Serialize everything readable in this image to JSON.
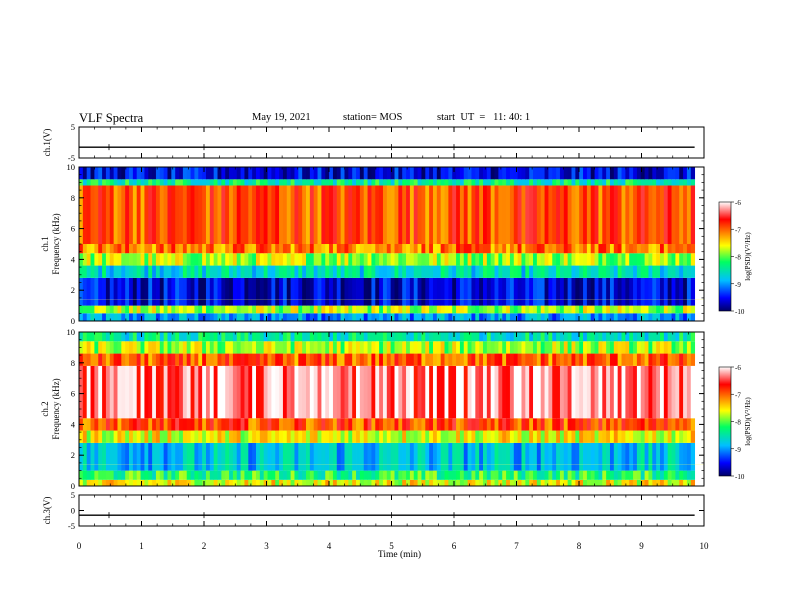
{
  "header": {
    "title": "VLF Spectra",
    "date": "May 19, 2021",
    "station": "station= MOS",
    "start_ut": "start  UT  =   11: 40: 1"
  },
  "chart_data": [
    {
      "panel": "ch1-waveform",
      "type": "line",
      "ylabel": "ch.1(V)",
      "ylim": [
        -5,
        5
      ],
      "yticks": [
        "5",
        "-5"
      ],
      "trace_level_v": -1.5
    },
    {
      "panel": "ch1-spectrogram",
      "type": "heatmap",
      "ylabel_line1": "ch.1",
      "ylabel_line2": "Frequency (kHz)",
      "ylim": [
        0,
        10
      ],
      "yticks": [
        "0",
        "2",
        "4",
        "6",
        "8",
        "10"
      ],
      "bands": [
        {
          "from_khz": 0.0,
          "to_khz": 0.5,
          "level": -9.0
        },
        {
          "from_khz": 0.5,
          "to_khz": 1.0,
          "level": -7.8
        },
        {
          "from_khz": 1.0,
          "to_khz": 2.8,
          "level": -9.6
        },
        {
          "from_khz": 2.8,
          "to_khz": 3.6,
          "level": -8.6
        },
        {
          "from_khz": 3.6,
          "to_khz": 4.4,
          "level": -7.8
        },
        {
          "from_khz": 4.4,
          "to_khz": 5.0,
          "level": -7.1
        },
        {
          "from_khz": 5.0,
          "to_khz": 8.8,
          "level": -6.9
        },
        {
          "from_khz": 8.8,
          "to_khz": 9.2,
          "level": -8.4
        },
        {
          "from_khz": 9.2,
          "to_khz": 10.0,
          "level": -9.6
        }
      ],
      "colorbar": {
        "label": "log(PSD)(V²/Hz)",
        "min": -10,
        "max": -6,
        "ticks": [
          "-6",
          "-7",
          "-8",
          "-9",
          "-10"
        ]
      }
    },
    {
      "panel": "ch2-spectrogram",
      "type": "heatmap",
      "ylabel_line1": "ch.2",
      "ylabel_line2": "Frequency (kHz)",
      "ylim": [
        0,
        10
      ],
      "yticks": [
        "0",
        "2",
        "4",
        "6",
        "8",
        "10"
      ],
      "bands": [
        {
          "from_khz": 0.0,
          "to_khz": 0.4,
          "level": -7.6
        },
        {
          "from_khz": 0.4,
          "to_khz": 1.0,
          "level": -8.2
        },
        {
          "from_khz": 1.0,
          "to_khz": 2.8,
          "level": -8.8
        },
        {
          "from_khz": 2.8,
          "to_khz": 3.6,
          "level": -7.6
        },
        {
          "from_khz": 3.6,
          "to_khz": 4.4,
          "level": -6.9
        },
        {
          "from_khz": 4.4,
          "to_khz": 7.8,
          "level": -6.3
        },
        {
          "from_khz": 7.8,
          "to_khz": 8.6,
          "level": -7.0
        },
        {
          "from_khz": 8.6,
          "to_khz": 9.4,
          "level": -7.8
        },
        {
          "from_khz": 9.4,
          "to_khz": 10.0,
          "level": -8.5
        }
      ],
      "colorbar": {
        "label": "log(PSD)(V²/Hz)",
        "min": -10,
        "max": -6,
        "ticks": [
          "-6",
          "-7",
          "-8",
          "-9",
          "-10"
        ]
      }
    },
    {
      "panel": "ch3-waveform",
      "type": "line",
      "ylabel": "ch.3(V)",
      "ylim": [
        -5,
        5
      ],
      "yticks": [
        "5",
        "0",
        "-5"
      ],
      "trace_level_v": -1.5
    }
  ],
  "x_axis": {
    "label": "Time  (min)",
    "xlim": [
      0,
      10
    ],
    "ticks": [
      "0",
      "1",
      "2",
      "3",
      "4",
      "5",
      "6",
      "7",
      "8",
      "9",
      "10"
    ],
    "data_end_min": 9.85
  }
}
